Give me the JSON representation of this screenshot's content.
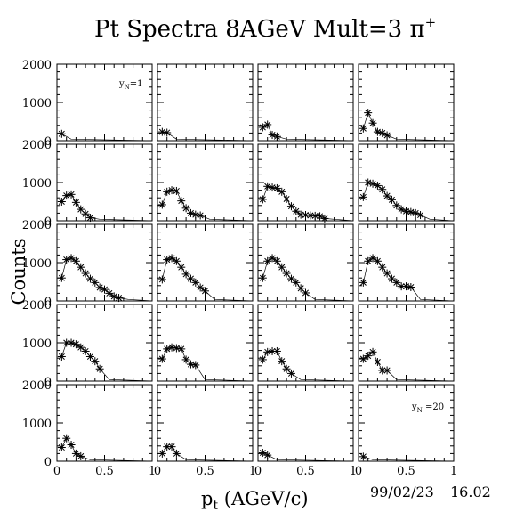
{
  "figure": {
    "title": "Pt Spectra 8AGeV Mult=3 π",
    "title_sup": "+",
    "xlabel": "p",
    "xlabel_sub": "t",
    "xlabel_rest": " (AGeV/c)",
    "ylabel": "Counts",
    "date": "99/02/23",
    "time": "16.02",
    "first_panel_label": "y",
    "first_panel_label_sub": "N",
    "first_panel_label_rest": "=1",
    "last_panel_label": "y",
    "last_panel_label_sub": "N",
    "last_panel_label_rest": " =20",
    "y_ticks": [
      "2000",
      "1000",
      "0"
    ],
    "x_ticks": [
      "0",
      "0.5",
      "1"
    ],
    "colors": {
      "ink": "#000000",
      "background": "#ffffff"
    }
  },
  "chart_data": {
    "type": "scatter",
    "grid": false,
    "layout": "5 rows x 4 columns of small multiples, panels y_N=1..20 in reading order",
    "xlim": [
      0,
      1
    ],
    "ylim": [
      0,
      2000
    ],
    "marker": "asterisk",
    "panels": [
      {
        "label": "y_N=1",
        "points": [
          [
            0.05,
            180
          ]
        ]
      },
      {
        "label": "",
        "points": [
          [
            0.05,
            230
          ],
          [
            0.1,
            210
          ]
        ]
      },
      {
        "label": "",
        "points": [
          [
            0.05,
            350
          ],
          [
            0.1,
            420
          ],
          [
            0.15,
            150
          ],
          [
            0.2,
            110
          ]
        ]
      },
      {
        "label": "",
        "points": [
          [
            0.05,
            320
          ],
          [
            0.1,
            730
          ],
          [
            0.15,
            460
          ],
          [
            0.2,
            230
          ],
          [
            0.25,
            200
          ],
          [
            0.3,
            140
          ]
        ]
      },
      {
        "label": "",
        "points": [
          [
            0.05,
            500
          ],
          [
            0.1,
            660
          ],
          [
            0.15,
            690
          ],
          [
            0.2,
            480
          ],
          [
            0.25,
            300
          ],
          [
            0.3,
            180
          ],
          [
            0.35,
            80
          ]
        ]
      },
      {
        "label": "",
        "points": [
          [
            0.05,
            420
          ],
          [
            0.1,
            760
          ],
          [
            0.15,
            800
          ],
          [
            0.2,
            780
          ],
          [
            0.25,
            520
          ],
          [
            0.3,
            330
          ],
          [
            0.35,
            200
          ],
          [
            0.4,
            160
          ],
          [
            0.45,
            140
          ]
        ]
      },
      {
        "label": "",
        "points": [
          [
            0.05,
            560
          ],
          [
            0.1,
            900
          ],
          [
            0.15,
            870
          ],
          [
            0.2,
            850
          ],
          [
            0.25,
            760
          ],
          [
            0.3,
            570
          ],
          [
            0.35,
            380
          ],
          [
            0.4,
            250
          ],
          [
            0.45,
            160
          ],
          [
            0.5,
            150
          ],
          [
            0.55,
            140
          ],
          [
            0.6,
            130
          ],
          [
            0.65,
            120
          ],
          [
            0.7,
            60
          ]
        ]
      },
      {
        "label": "",
        "points": [
          [
            0.05,
            620
          ],
          [
            0.1,
            1000
          ],
          [
            0.15,
            970
          ],
          [
            0.2,
            920
          ],
          [
            0.25,
            820
          ],
          [
            0.3,
            650
          ],
          [
            0.35,
            550
          ],
          [
            0.4,
            400
          ],
          [
            0.45,
            300
          ],
          [
            0.5,
            250
          ],
          [
            0.55,
            230
          ],
          [
            0.6,
            200
          ],
          [
            0.65,
            150
          ]
        ]
      },
      {
        "label": "",
        "points": [
          [
            0.05,
            600
          ],
          [
            0.1,
            1080
          ],
          [
            0.15,
            1120
          ],
          [
            0.2,
            1040
          ],
          [
            0.25,
            880
          ],
          [
            0.3,
            720
          ],
          [
            0.35,
            580
          ],
          [
            0.4,
            480
          ],
          [
            0.45,
            350
          ],
          [
            0.5,
            300
          ],
          [
            0.55,
            200
          ],
          [
            0.6,
            120
          ],
          [
            0.65,
            80
          ]
        ]
      },
      {
        "label": "",
        "points": [
          [
            0.05,
            560
          ],
          [
            0.1,
            1080
          ],
          [
            0.15,
            1120
          ],
          [
            0.2,
            1040
          ],
          [
            0.25,
            880
          ],
          [
            0.3,
            700
          ],
          [
            0.35,
            580
          ],
          [
            0.4,
            480
          ],
          [
            0.45,
            350
          ],
          [
            0.5,
            260
          ]
        ]
      },
      {
        "label": "",
        "points": [
          [
            0.05,
            600
          ],
          [
            0.1,
            1040
          ],
          [
            0.15,
            1120
          ],
          [
            0.2,
            1040
          ],
          [
            0.25,
            880
          ],
          [
            0.3,
            720
          ],
          [
            0.35,
            580
          ],
          [
            0.4,
            480
          ],
          [
            0.45,
            330
          ],
          [
            0.5,
            210
          ]
        ]
      },
      {
        "label": "",
        "points": [
          [
            0.05,
            480
          ],
          [
            0.1,
            1040
          ],
          [
            0.15,
            1120
          ],
          [
            0.2,
            1040
          ],
          [
            0.25,
            880
          ],
          [
            0.3,
            720
          ],
          [
            0.35,
            580
          ],
          [
            0.4,
            480
          ],
          [
            0.45,
            380
          ],
          [
            0.5,
            380
          ],
          [
            0.55,
            360
          ]
        ]
      },
      {
        "label": "",
        "points": [
          [
            0.05,
            640
          ],
          [
            0.1,
            1000
          ],
          [
            0.15,
            1000
          ],
          [
            0.2,
            960
          ],
          [
            0.25,
            880
          ],
          [
            0.3,
            780
          ],
          [
            0.35,
            640
          ],
          [
            0.4,
            520
          ],
          [
            0.45,
            320
          ]
        ]
      },
      {
        "label": "",
        "points": [
          [
            0.05,
            580
          ],
          [
            0.1,
            840
          ],
          [
            0.15,
            880
          ],
          [
            0.2,
            860
          ],
          [
            0.25,
            840
          ],
          [
            0.3,
            560
          ],
          [
            0.35,
            440
          ],
          [
            0.4,
            420
          ]
        ]
      },
      {
        "label": "",
        "points": [
          [
            0.05,
            560
          ],
          [
            0.1,
            760
          ],
          [
            0.15,
            780
          ],
          [
            0.2,
            780
          ],
          [
            0.25,
            520
          ],
          [
            0.3,
            320
          ],
          [
            0.35,
            200
          ]
        ]
      },
      {
        "label": "",
        "points": [
          [
            0.05,
            580
          ],
          [
            0.1,
            660
          ],
          [
            0.15,
            760
          ],
          [
            0.2,
            500
          ],
          [
            0.25,
            280
          ],
          [
            0.3,
            280
          ]
        ]
      },
      {
        "label": "",
        "points": [
          [
            0.05,
            360
          ],
          [
            0.1,
            600
          ],
          [
            0.15,
            430
          ],
          [
            0.2,
            200
          ],
          [
            0.25,
            130
          ]
        ]
      },
      {
        "label": "",
        "points": [
          [
            0.05,
            200
          ],
          [
            0.1,
            380
          ],
          [
            0.15,
            380
          ],
          [
            0.2,
            200
          ]
        ]
      },
      {
        "label": "",
        "points": [
          [
            0.05,
            220
          ],
          [
            0.1,
            160
          ]
        ]
      },
      {
        "label": "y_N =20",
        "points": [
          [
            0.05,
            120
          ]
        ]
      }
    ]
  }
}
